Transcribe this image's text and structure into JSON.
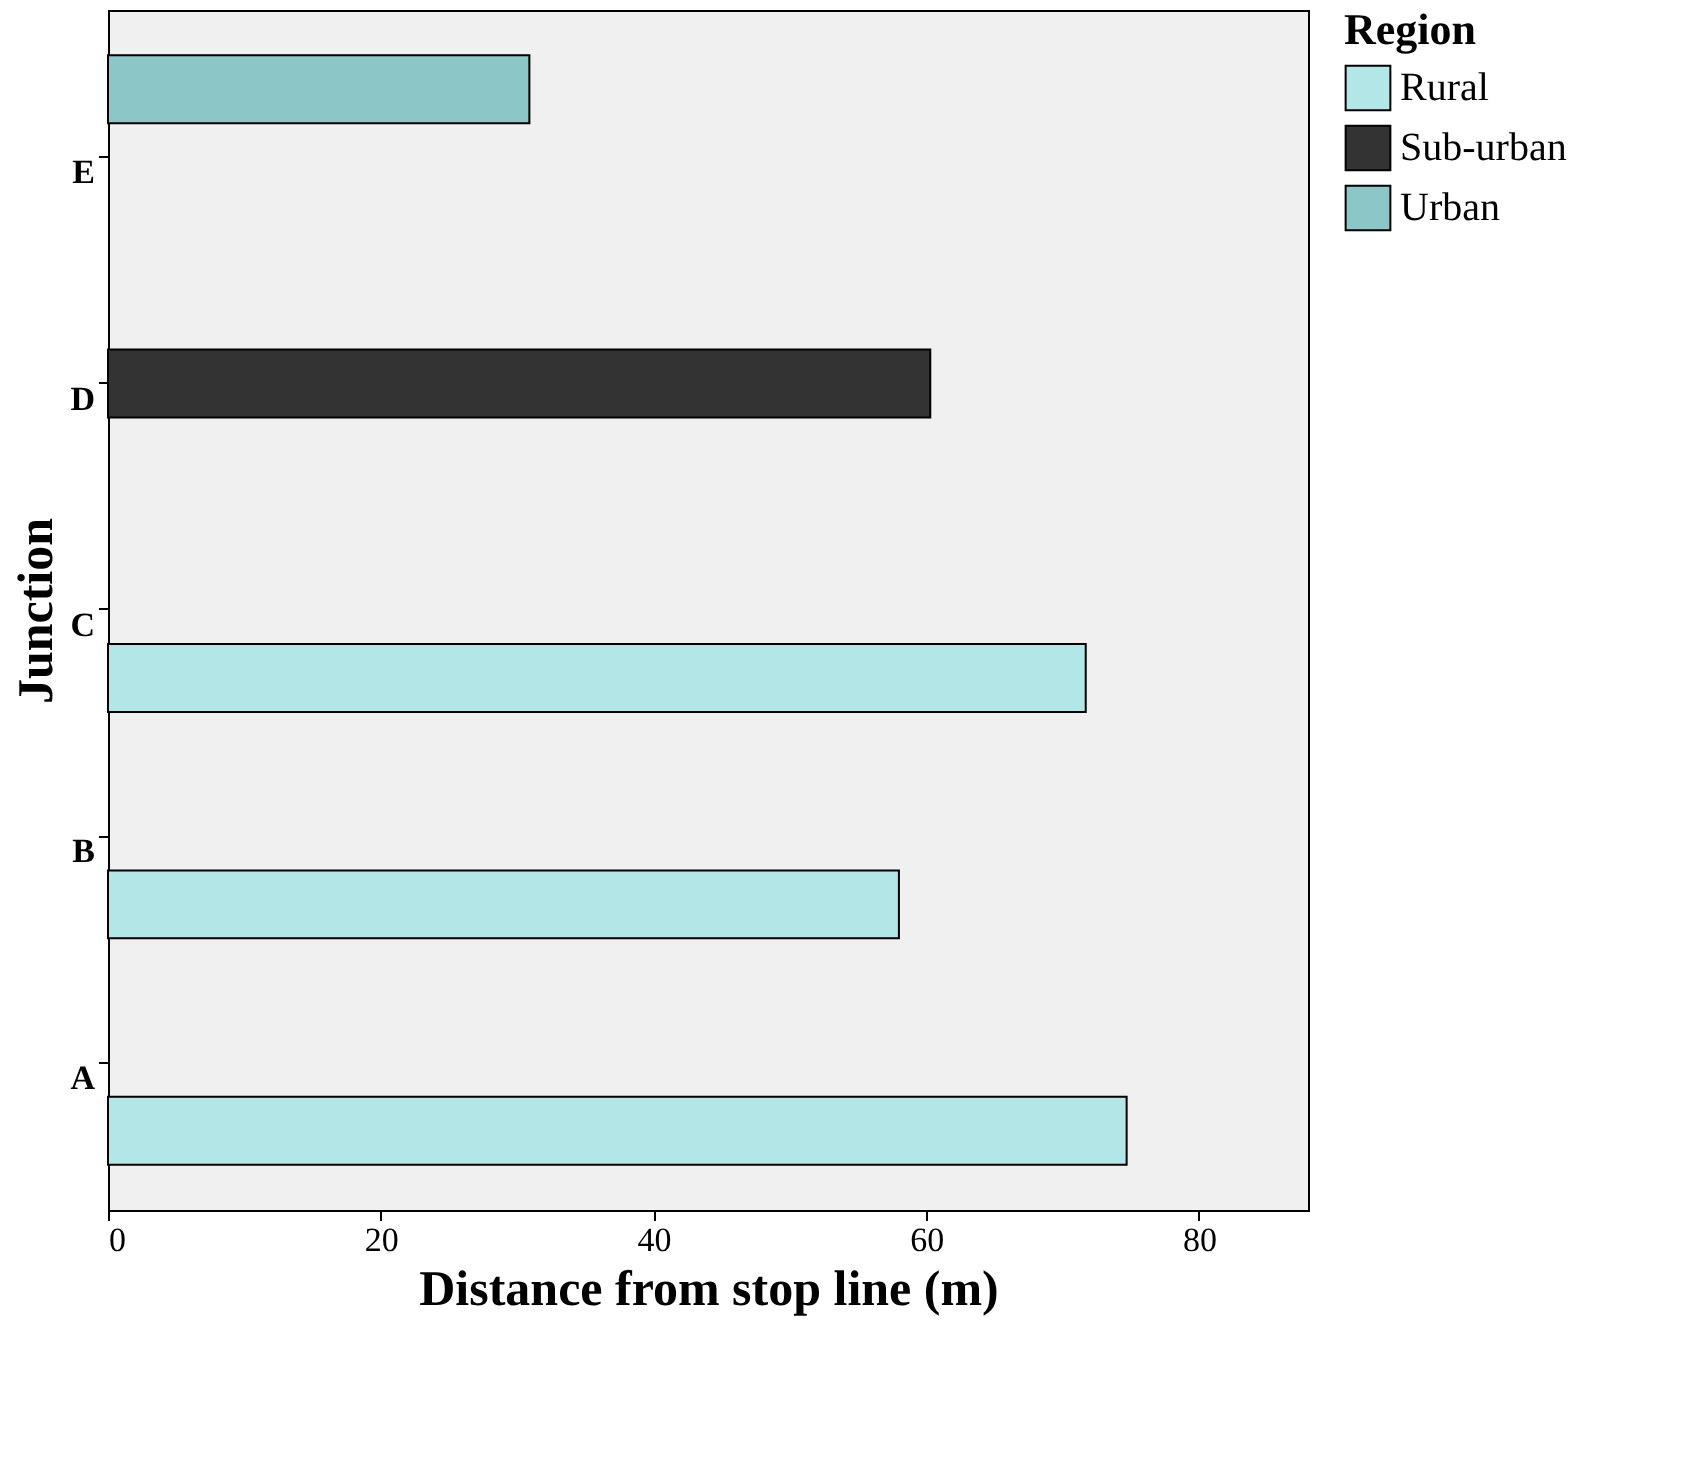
{
  "chart_data": {
    "type": "bar",
    "orientation": "horizontal",
    "xlabel": "Distance from stop line (m)",
    "ylabel": "Junction",
    "legend_title": "Region",
    "legend": "top right",
    "categories": [
      "E",
      "D",
      "C",
      "B",
      "A"
    ],
    "series": [
      {
        "name": "Rural",
        "color": "#b3e6e6",
        "values": [
          null,
          null,
          71.7,
          58.0,
          74.7
        ]
      },
      {
        "name": "Sub-urban",
        "color": "#333333",
        "values": [
          null,
          60.3,
          null,
          null,
          null
        ]
      },
      {
        "name": "Urban",
        "color": "#8cc6c6",
        "values": [
          30.9,
          null,
          null,
          null,
          null
        ]
      }
    ],
    "xlim": [
      0,
      88
    ],
    "xticks": [
      0,
      20,
      40,
      60,
      80
    ],
    "grid": false
  }
}
